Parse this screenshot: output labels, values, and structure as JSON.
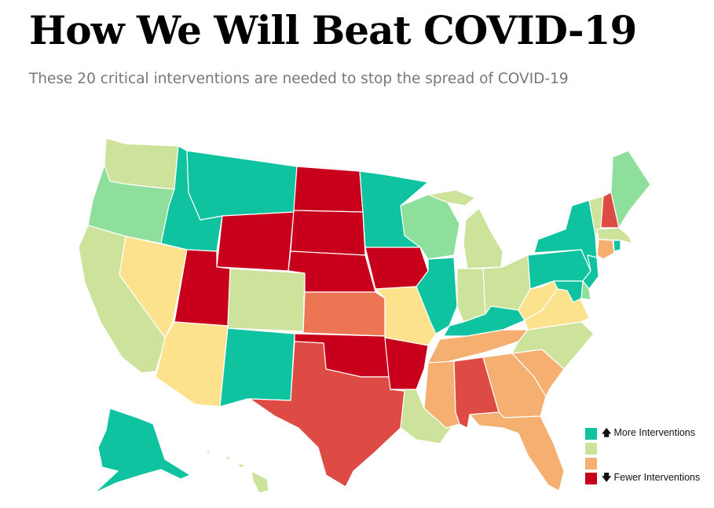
{
  "header": {
    "title": "How We Will Beat COVID-19",
    "subtitle": "These 20 critical interventions are needed to stop the spread of COVID-19"
  },
  "colors": {
    "level5": "#10c3a0",
    "level4": "#8ede9c",
    "level3": "#cde39c",
    "level2": "#fde28e",
    "level1": "#f5b071",
    "level0": "#ec7553",
    "levelm1": "#de4b44",
    "levelm2": "#c8001b"
  },
  "legend": {
    "items": [
      {
        "key": "more",
        "arrow": "🡅",
        "label": "More Interventions",
        "color": "#10c3a0"
      },
      {
        "key": "mid1",
        "arrow": "",
        "label": "",
        "color": "#cde39c"
      },
      {
        "key": "mid2",
        "arrow": "",
        "label": "",
        "color": "#f5b071"
      },
      {
        "key": "fewer",
        "arrow": "🡇",
        "label": "Fewer Interventions",
        "color": "#c8001b"
      }
    ]
  },
  "states": {
    "WA": "level3",
    "OR": "level4",
    "CA": "level3",
    "NV": "level2",
    "ID": "level5",
    "MT": "level5",
    "WY": "levelm2",
    "UT": "levelm2",
    "AZ": "level2",
    "CO": "level3",
    "NM": "level5",
    "ND": "levelm2",
    "SD": "levelm2",
    "NE": "levelm2",
    "KS": "level0",
    "OK": "levelm2",
    "TX": "levelm1",
    "MN": "level5",
    "IA": "levelm2",
    "MO": "level2",
    "AR": "levelm2",
    "LA": "level3",
    "WI": "level4",
    "IL": "level5",
    "MI": "level3",
    "IN": "level3",
    "OH": "level3",
    "KY": "level5",
    "TN": "level1",
    "MS": "level1",
    "AL": "levelm1",
    "GA": "level1",
    "FL": "level1",
    "SC": "level1",
    "NC": "level3",
    "VA": "level2",
    "WV": "level2",
    "PA": "level5",
    "NY": "level5",
    "VT": "level3",
    "NH": "levelm1",
    "ME": "level4",
    "MA": "level3",
    "CT": "level1",
    "RI": "level5",
    "NJ": "level5",
    "DE": "level4",
    "MD": "level5",
    "AK": "level5",
    "HI": "level3"
  }
}
